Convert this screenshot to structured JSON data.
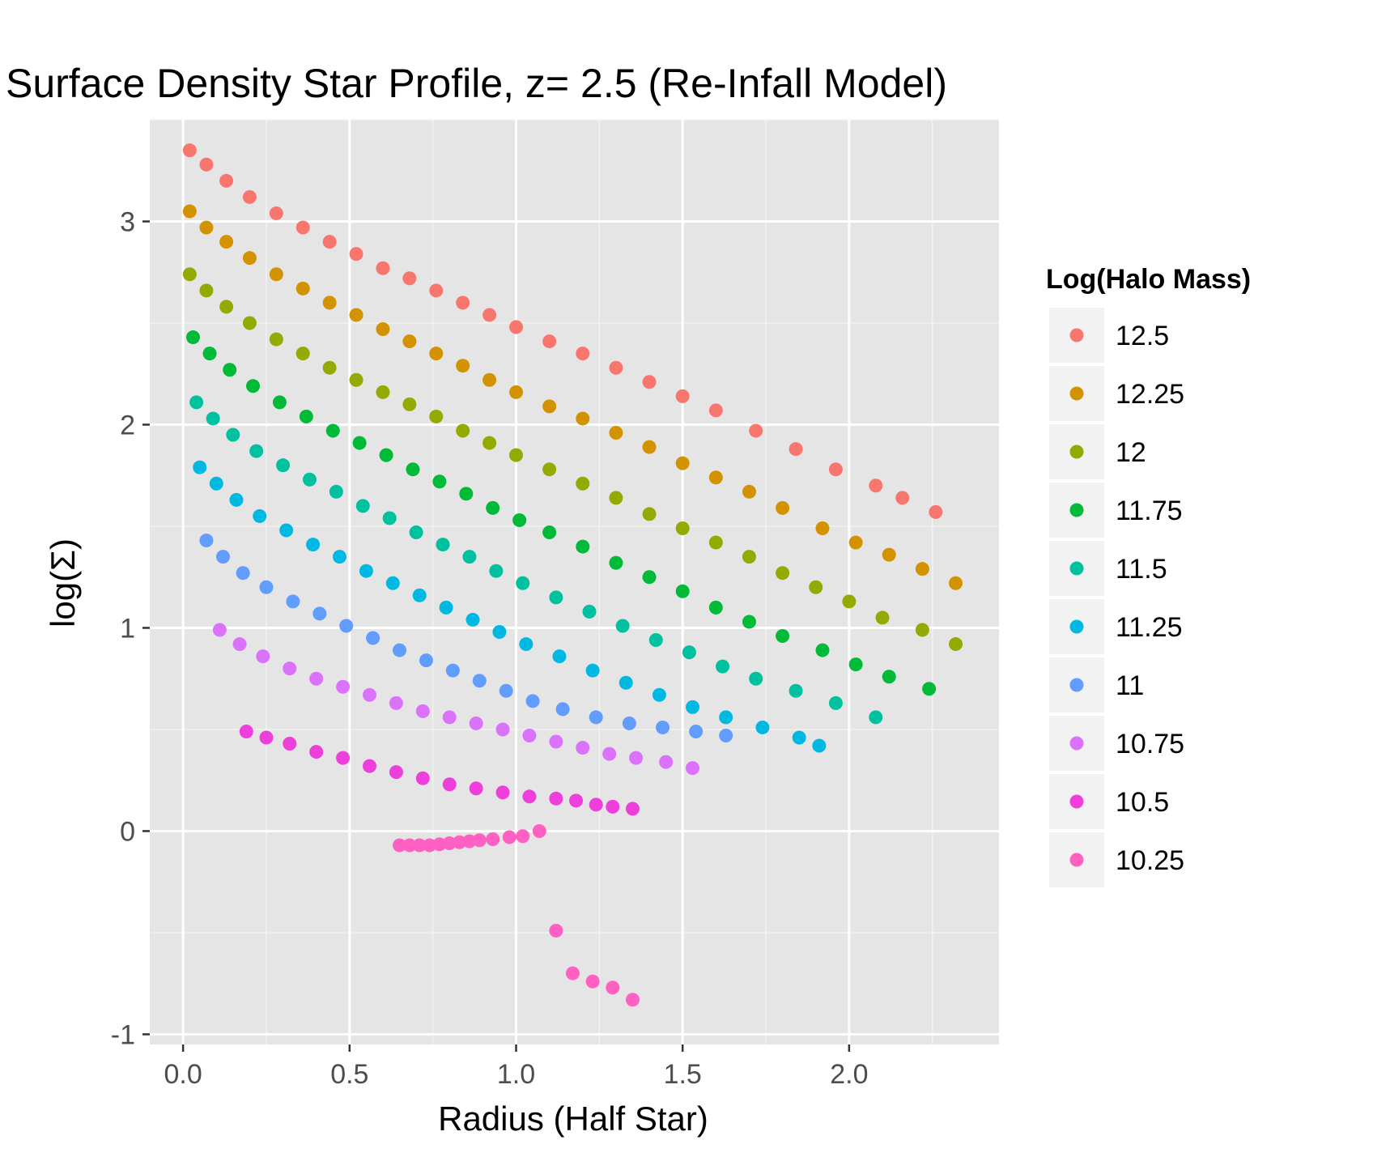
{
  "chart_data": {
    "type": "scatter",
    "title": "Surface Density Star Profile, z= 2.5 (Re-Infall Model)",
    "xlabel": "Radius (Half Star)",
    "ylabel": "log(Σ)",
    "xlim": [
      -0.1,
      2.45
    ],
    "ylim": [
      -1.05,
      3.5
    ],
    "x_ticks": [
      0.0,
      0.5,
      1.0,
      1.5,
      2.0
    ],
    "x_tick_labels": [
      "0.0",
      "0.5",
      "1.0",
      "1.5",
      "2.0"
    ],
    "y_ticks": [
      -1,
      0,
      1,
      2,
      3
    ],
    "y_tick_labels": [
      "-1",
      "0",
      "1",
      "2",
      "3"
    ],
    "grid": true,
    "background": "#e5e5e5",
    "legend": {
      "title": "Log(Halo Mass)",
      "position": "right"
    },
    "series": [
      {
        "name": "12.5",
        "color": "#F8766D",
        "points": [
          [
            0.02,
            3.35
          ],
          [
            0.07,
            3.28
          ],
          [
            0.13,
            3.2
          ],
          [
            0.2,
            3.12
          ],
          [
            0.28,
            3.04
          ],
          [
            0.36,
            2.97
          ],
          [
            0.44,
            2.9
          ],
          [
            0.52,
            2.84
          ],
          [
            0.6,
            2.77
          ],
          [
            0.68,
            2.72
          ],
          [
            0.76,
            2.66
          ],
          [
            0.84,
            2.6
          ],
          [
            0.92,
            2.54
          ],
          [
            1.0,
            2.48
          ],
          [
            1.1,
            2.41
          ],
          [
            1.2,
            2.35
          ],
          [
            1.3,
            2.28
          ],
          [
            1.4,
            2.21
          ],
          [
            1.5,
            2.14
          ],
          [
            1.6,
            2.07
          ],
          [
            1.72,
            1.97
          ],
          [
            1.84,
            1.88
          ],
          [
            1.96,
            1.78
          ],
          [
            2.08,
            1.7
          ],
          [
            2.16,
            1.64
          ],
          [
            2.26,
            1.57
          ]
        ]
      },
      {
        "name": "12.25",
        "color": "#D39200",
        "points": [
          [
            0.02,
            3.05
          ],
          [
            0.07,
            2.97
          ],
          [
            0.13,
            2.9
          ],
          [
            0.2,
            2.82
          ],
          [
            0.28,
            2.74
          ],
          [
            0.36,
            2.67
          ],
          [
            0.44,
            2.6
          ],
          [
            0.52,
            2.54
          ],
          [
            0.6,
            2.47
          ],
          [
            0.68,
            2.41
          ],
          [
            0.76,
            2.35
          ],
          [
            0.84,
            2.29
          ],
          [
            0.92,
            2.22
          ],
          [
            1.0,
            2.16
          ],
          [
            1.1,
            2.09
          ],
          [
            1.2,
            2.03
          ],
          [
            1.3,
            1.96
          ],
          [
            1.4,
            1.89
          ],
          [
            1.5,
            1.81
          ],
          [
            1.6,
            1.74
          ],
          [
            1.7,
            1.67
          ],
          [
            1.8,
            1.59
          ],
          [
            1.92,
            1.49
          ],
          [
            2.02,
            1.42
          ],
          [
            2.12,
            1.36
          ],
          [
            2.22,
            1.29
          ],
          [
            2.32,
            1.22
          ]
        ]
      },
      {
        "name": "12",
        "color": "#93AA00",
        "points": [
          [
            0.02,
            2.74
          ],
          [
            0.07,
            2.66
          ],
          [
            0.13,
            2.58
          ],
          [
            0.2,
            2.5
          ],
          [
            0.28,
            2.42
          ],
          [
            0.36,
            2.35
          ],
          [
            0.44,
            2.28
          ],
          [
            0.52,
            2.22
          ],
          [
            0.6,
            2.16
          ],
          [
            0.68,
            2.1
          ],
          [
            0.76,
            2.04
          ],
          [
            0.84,
            1.97
          ],
          [
            0.92,
            1.91
          ],
          [
            1.0,
            1.85
          ],
          [
            1.1,
            1.78
          ],
          [
            1.2,
            1.71
          ],
          [
            1.3,
            1.64
          ],
          [
            1.4,
            1.56
          ],
          [
            1.5,
            1.49
          ],
          [
            1.6,
            1.42
          ],
          [
            1.7,
            1.35
          ],
          [
            1.8,
            1.27
          ],
          [
            1.9,
            1.2
          ],
          [
            2.0,
            1.13
          ],
          [
            2.1,
            1.05
          ],
          [
            2.22,
            0.99
          ],
          [
            2.32,
            0.92
          ]
        ]
      },
      {
        "name": "11.75",
        "color": "#00BA38",
        "points": [
          [
            0.03,
            2.43
          ],
          [
            0.08,
            2.35
          ],
          [
            0.14,
            2.27
          ],
          [
            0.21,
            2.19
          ],
          [
            0.29,
            2.11
          ],
          [
            0.37,
            2.04
          ],
          [
            0.45,
            1.97
          ],
          [
            0.53,
            1.91
          ],
          [
            0.61,
            1.85
          ],
          [
            0.69,
            1.78
          ],
          [
            0.77,
            1.72
          ],
          [
            0.85,
            1.66
          ],
          [
            0.93,
            1.59
          ],
          [
            1.01,
            1.53
          ],
          [
            1.1,
            1.47
          ],
          [
            1.2,
            1.4
          ],
          [
            1.3,
            1.32
          ],
          [
            1.4,
            1.25
          ],
          [
            1.5,
            1.18
          ],
          [
            1.6,
            1.1
          ],
          [
            1.7,
            1.03
          ],
          [
            1.8,
            0.96
          ],
          [
            1.92,
            0.89
          ],
          [
            2.02,
            0.82
          ],
          [
            2.12,
            0.76
          ],
          [
            2.24,
            0.7
          ]
        ]
      },
      {
        "name": "11.5",
        "color": "#00C19F",
        "points": [
          [
            0.04,
            2.11
          ],
          [
            0.09,
            2.03
          ],
          [
            0.15,
            1.95
          ],
          [
            0.22,
            1.87
          ],
          [
            0.3,
            1.8
          ],
          [
            0.38,
            1.73
          ],
          [
            0.46,
            1.67
          ],
          [
            0.54,
            1.6
          ],
          [
            0.62,
            1.54
          ],
          [
            0.7,
            1.47
          ],
          [
            0.78,
            1.41
          ],
          [
            0.86,
            1.35
          ],
          [
            0.94,
            1.28
          ],
          [
            1.02,
            1.22
          ],
          [
            1.12,
            1.15
          ],
          [
            1.22,
            1.08
          ],
          [
            1.32,
            1.01
          ],
          [
            1.42,
            0.94
          ],
          [
            1.52,
            0.88
          ],
          [
            1.62,
            0.81
          ],
          [
            1.72,
            0.75
          ],
          [
            1.84,
            0.69
          ],
          [
            1.96,
            0.63
          ],
          [
            2.08,
            0.56
          ]
        ]
      },
      {
        "name": "11.25",
        "color": "#00B9E3",
        "points": [
          [
            0.05,
            1.79
          ],
          [
            0.1,
            1.71
          ],
          [
            0.16,
            1.63
          ],
          [
            0.23,
            1.55
          ],
          [
            0.31,
            1.48
          ],
          [
            0.39,
            1.41
          ],
          [
            0.47,
            1.35
          ],
          [
            0.55,
            1.28
          ],
          [
            0.63,
            1.22
          ],
          [
            0.71,
            1.16
          ],
          [
            0.79,
            1.1
          ],
          [
            0.87,
            1.04
          ],
          [
            0.95,
            0.98
          ],
          [
            1.03,
            0.92
          ],
          [
            1.13,
            0.86
          ],
          [
            1.23,
            0.79
          ],
          [
            1.33,
            0.73
          ],
          [
            1.43,
            0.67
          ],
          [
            1.53,
            0.61
          ],
          [
            1.63,
            0.56
          ],
          [
            1.74,
            0.51
          ],
          [
            1.85,
            0.46
          ],
          [
            1.91,
            0.42
          ]
        ]
      },
      {
        "name": "11",
        "color": "#619CFF",
        "points": [
          [
            0.07,
            1.43
          ],
          [
            0.12,
            1.35
          ],
          [
            0.18,
            1.27
          ],
          [
            0.25,
            1.2
          ],
          [
            0.33,
            1.13
          ],
          [
            0.41,
            1.07
          ],
          [
            0.49,
            1.01
          ],
          [
            0.57,
            0.95
          ],
          [
            0.65,
            0.89
          ],
          [
            0.73,
            0.84
          ],
          [
            0.81,
            0.79
          ],
          [
            0.89,
            0.74
          ],
          [
            0.97,
            0.69
          ],
          [
            1.05,
            0.64
          ],
          [
            1.14,
            0.6
          ],
          [
            1.24,
            0.56
          ],
          [
            1.34,
            0.53
          ],
          [
            1.44,
            0.51
          ],
          [
            1.54,
            0.49
          ],
          [
            1.63,
            0.47
          ]
        ]
      },
      {
        "name": "10.75",
        "color": "#DB72FB",
        "points": [
          [
            0.11,
            0.99
          ],
          [
            0.17,
            0.92
          ],
          [
            0.24,
            0.86
          ],
          [
            0.32,
            0.8
          ],
          [
            0.4,
            0.75
          ],
          [
            0.48,
            0.71
          ],
          [
            0.56,
            0.67
          ],
          [
            0.64,
            0.63
          ],
          [
            0.72,
            0.59
          ],
          [
            0.8,
            0.56
          ],
          [
            0.88,
            0.53
          ],
          [
            0.96,
            0.5
          ],
          [
            1.04,
            0.47
          ],
          [
            1.12,
            0.44
          ],
          [
            1.2,
            0.41
          ],
          [
            1.28,
            0.38
          ],
          [
            1.36,
            0.36
          ],
          [
            1.45,
            0.34
          ],
          [
            1.53,
            0.31
          ]
        ]
      },
      {
        "name": "10.5",
        "color": "#EE3FDC",
        "points": [
          [
            0.19,
            0.49
          ],
          [
            0.25,
            0.46
          ],
          [
            0.32,
            0.43
          ],
          [
            0.4,
            0.39
          ],
          [
            0.48,
            0.36
          ],
          [
            0.56,
            0.32
          ],
          [
            0.64,
            0.29
          ],
          [
            0.72,
            0.26
          ],
          [
            0.8,
            0.23
          ],
          [
            0.88,
            0.21
          ],
          [
            0.96,
            0.19
          ],
          [
            1.04,
            0.17
          ],
          [
            1.12,
            0.16
          ],
          [
            1.18,
            0.15
          ],
          [
            1.24,
            0.13
          ],
          [
            1.29,
            0.12
          ],
          [
            1.35,
            0.11
          ]
        ]
      },
      {
        "name": "10.25",
        "color": "#FF61C3",
        "points": [
          [
            0.65,
            -0.07
          ],
          [
            0.68,
            -0.07
          ],
          [
            0.71,
            -0.07
          ],
          [
            0.74,
            -0.07
          ],
          [
            0.77,
            -0.065
          ],
          [
            0.8,
            -0.06
          ],
          [
            0.83,
            -0.055
          ],
          [
            0.86,
            -0.05
          ],
          [
            0.89,
            -0.045
          ],
          [
            0.93,
            -0.04
          ],
          [
            0.98,
            -0.03
          ],
          [
            1.02,
            -0.025
          ],
          [
            1.07,
            0.0
          ],
          [
            1.12,
            -0.49
          ],
          [
            1.17,
            -0.7
          ],
          [
            1.23,
            -0.74
          ],
          [
            1.29,
            -0.77
          ],
          [
            1.35,
            -0.83
          ]
        ]
      }
    ]
  }
}
